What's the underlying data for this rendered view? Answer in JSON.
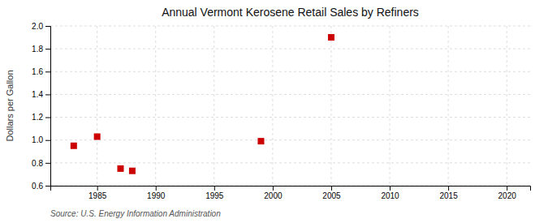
{
  "chart_data": {
    "type": "scatter",
    "title": "Annual Vermont Kerosene Retail Sales by Refiners",
    "ylabel": "Dollars per Gallon",
    "annotations": [
      "Source: U.S. Energy Information Administration"
    ],
    "x": [
      1983,
      1985,
      1987,
      1988,
      1999,
      2005
    ],
    "values": [
      0.95,
      1.03,
      0.75,
      0.73,
      0.99,
      1.9
    ],
    "color": "#cc0000",
    "marker": "square",
    "xlim": [
      1981,
      2022
    ],
    "ylim": [
      0.6,
      2.0
    ],
    "xticks": [
      1985,
      1990,
      1995,
      2000,
      2005,
      2010,
      2015,
      2020
    ],
    "yticks": [
      0.6,
      0.8,
      {
        "value": 1.0,
        "label": "1.0"
      },
      1.2,
      1.4,
      1.6,
      1.8,
      {
        "value": 2.0,
        "label": "2.0"
      }
    ],
    "grid": true
  }
}
